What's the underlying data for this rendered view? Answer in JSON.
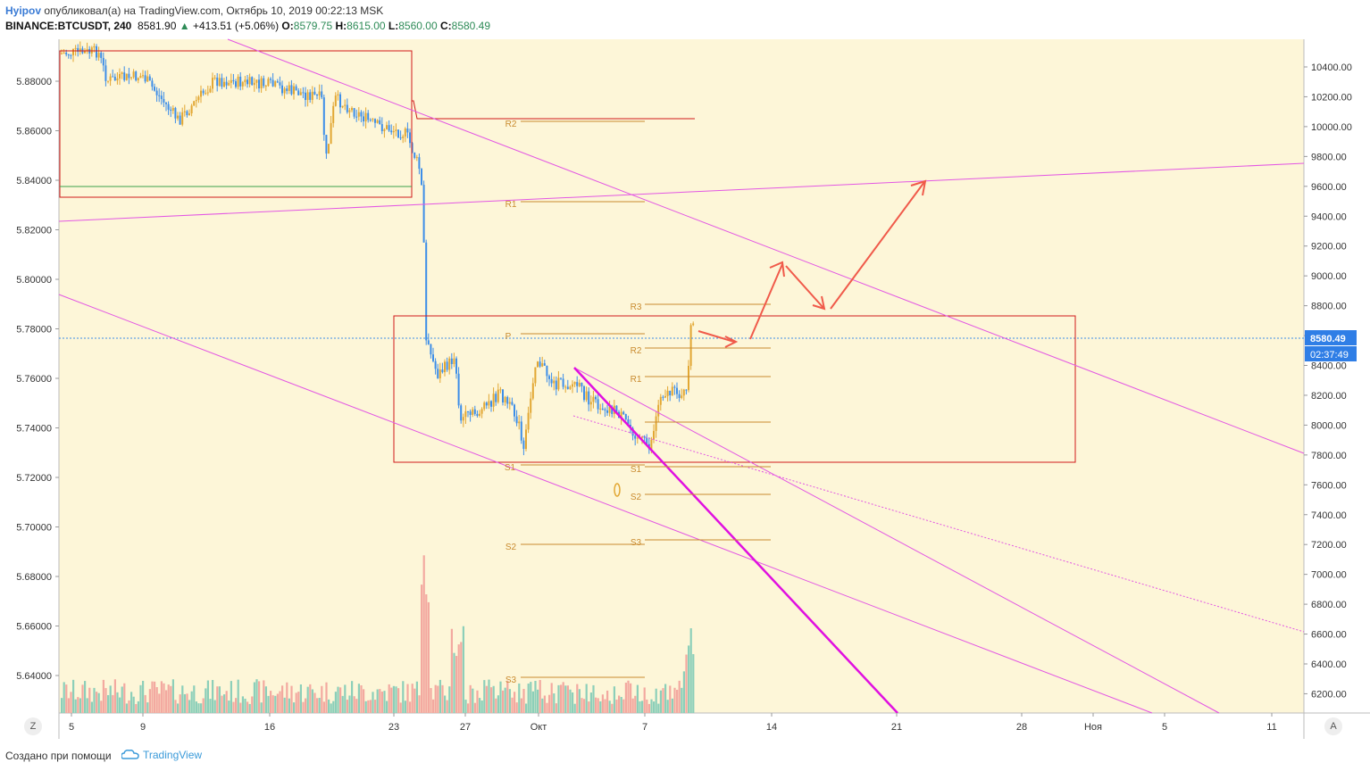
{
  "header": {
    "user": "Hyipov",
    "published": "опубликовал(а) на TradingView.com, Октябрь 10, 2019 00:22:13 MSK",
    "symbol": "BINANCE:BTCUSDT, 240",
    "last": "8581.90",
    "change": "+413.51 (+5.06%)",
    "open_label": "O:",
    "open": "8579.75",
    "high_label": "H:",
    "high": "8615.00",
    "low_label": "L:",
    "low": "8560.00",
    "close_label": "C:",
    "close": "8580.49"
  },
  "footer": {
    "created": "Создано при помощи",
    "brand": "TradingView"
  },
  "buttons": {
    "left": "Z",
    "right": "A"
  },
  "chart_data": {
    "type": "candlestick",
    "symbol": "BINANCE:BTCUSDT",
    "interval": "240",
    "left_axis": {
      "ticks": [
        "5.88000",
        "5.86000",
        "5.84000",
        "5.82000",
        "5.80000",
        "5.78000",
        "5.76000",
        "5.74000",
        "5.72000",
        "5.70000",
        "5.68000",
        "5.66000",
        "5.64000"
      ]
    },
    "right_axis": {
      "ticks": [
        "10400.00",
        "10200.00",
        "10000.00",
        "9800.00",
        "9600.00",
        "9400.00",
        "9200.00",
        "9000.00",
        "8800.00",
        "8600.00",
        "8400.00",
        "8200.00",
        "8000.00",
        "7800.00",
        "7600.00",
        "7400.00",
        "7200.00",
        "7000.00",
        "6800.00",
        "6600.00",
        "6400.00",
        "6200.00"
      ]
    },
    "x_axis": {
      "ticks": [
        "5",
        "9",
        "16",
        "23",
        "27",
        "Окт",
        "7",
        "14",
        "21",
        "28",
        "Ноя",
        "5",
        "11"
      ]
    },
    "price_label": "8580.49",
    "countdown": "02:37:49",
    "pivot_labels_left": [
      "R2",
      "R1",
      "P",
      "S1",
      "S2",
      "S3"
    ],
    "pivot_labels_right": [
      "R3",
      "R2",
      "R1",
      "S1",
      "S2",
      "S3"
    ],
    "colors": {
      "bg": "#fdf6d8",
      "up": "#e2a733",
      "down": "#3d8ee8",
      "trend": "#e357e3",
      "box": "#d11a1a",
      "arrow": "#f05a4a",
      "pivot": "#c98a2e",
      "vol_up": "#8ccfb9",
      "vol_down": "#f3a9a0"
    }
  }
}
